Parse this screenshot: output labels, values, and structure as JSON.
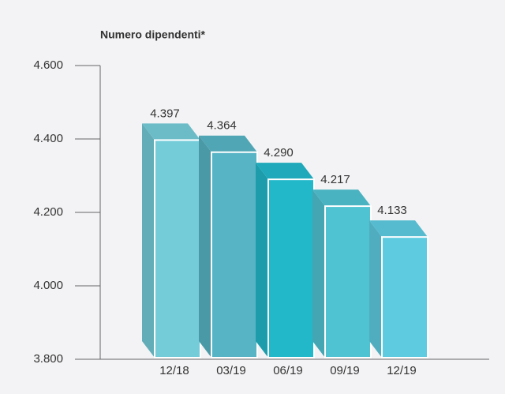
{
  "chart_data": {
    "type": "bar3d",
    "title": "Numero dipendenti*",
    "categories": [
      "12/18",
      "03/19",
      "06/19",
      "09/19",
      "12/19"
    ],
    "values": [
      4397,
      4364,
      4290,
      4217,
      4133
    ],
    "value_labels": [
      "4.397",
      "4.364",
      "4.290",
      "4.217",
      "4.133"
    ],
    "colors": [
      "#74ccd8",
      "#57b4c5",
      "#22b8ca",
      "#50c3d2",
      "#5ecbe1"
    ],
    "ylim": [
      3800,
      4600
    ],
    "yticks": [
      {
        "value": 3800,
        "label": "3.800"
      },
      {
        "value": 4000,
        "label": "4.000"
      },
      {
        "value": 4200,
        "label": "4.200"
      },
      {
        "value": 4400,
        "label": "4.400"
      },
      {
        "value": 4600,
        "label": "4.600"
      }
    ]
  }
}
